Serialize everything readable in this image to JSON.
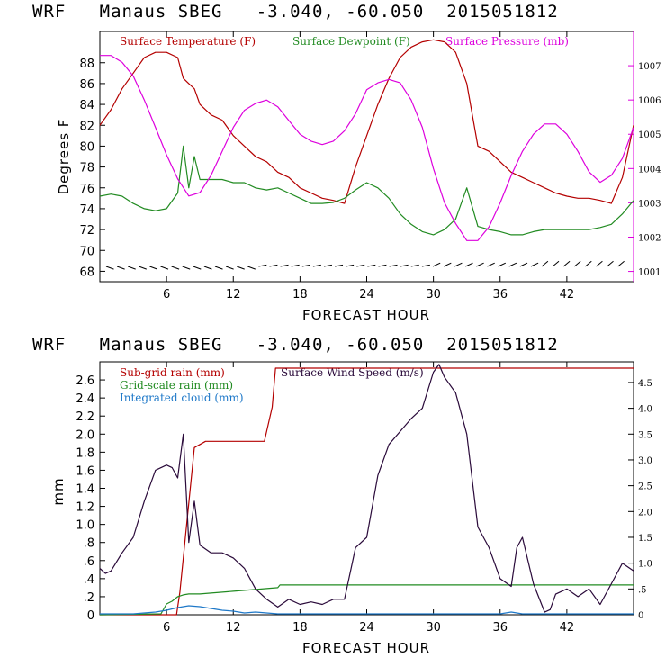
{
  "chart_data": [
    {
      "type": "line",
      "title": "WRF   Manaus SBEG   -3.040, -60.050  2015051812",
      "xlabel": "FORECAST HOUR",
      "ylabel": "Degrees F",
      "xlim": [
        0,
        48
      ],
      "ylim": [
        67,
        91
      ],
      "y2lim": [
        1000.7,
        1008.0
      ],
      "xticks": [
        6,
        12,
        18,
        24,
        30,
        36,
        42
      ],
      "yticks": [
        68,
        70,
        72,
        74,
        76,
        78,
        80,
        82,
        84,
        86,
        88
      ],
      "y2ticks": [
        1001,
        1002,
        1003,
        1004,
        1005,
        1006,
        1007
      ],
      "grid": false,
      "legend_position": "top-left",
      "colors": {
        "temperature": "#b40000",
        "dewpoint": "#228b22",
        "pressure": "#dd00dd",
        "wind_barbs": "#000000"
      },
      "series": [
        {
          "name": "Surface Temperature (F)",
          "axis": "left",
          "x": [
            0,
            1,
            2,
            3,
            4,
            5,
            6,
            7,
            7.5,
            8,
            8.5,
            9,
            10,
            11,
            12,
            13,
            14,
            15,
            16,
            17,
            18,
            19,
            20,
            21,
            22,
            23,
            24,
            25,
            26,
            27,
            28,
            29,
            30,
            31,
            32,
            33,
            34,
            35,
            36,
            37,
            38,
            39,
            40,
            41,
            42,
            43,
            44,
            45,
            46,
            47,
            48
          ],
          "values": [
            82,
            83.5,
            85.5,
            87,
            88.5,
            89,
            89,
            88.5,
            86.5,
            86,
            85.5,
            84,
            83,
            82.5,
            81,
            80,
            79,
            78.5,
            77.5,
            77,
            76,
            75.5,
            75,
            74.8,
            74.5,
            78,
            81,
            84,
            86.5,
            88.5,
            89.5,
            90,
            90.2,
            90,
            89,
            86,
            80,
            79.5,
            78.5,
            77.5,
            77,
            76.5,
            76,
            75.5,
            75.2,
            75,
            75,
            74.8,
            74.5,
            77,
            82
          ]
        },
        {
          "name": "Surface Dewpoint (F)",
          "axis": "left",
          "x": [
            0,
            1,
            2,
            3,
            4,
            5,
            6,
            7,
            7.5,
            8,
            8.5,
            9,
            10,
            11,
            12,
            13,
            14,
            15,
            16,
            17,
            18,
            19,
            20,
            21,
            22,
            23,
            24,
            25,
            26,
            27,
            28,
            29,
            30,
            31,
            32,
            33,
            34,
            35,
            36,
            37,
            38,
            39,
            40,
            41,
            42,
            43,
            44,
            45,
            46,
            47,
            48
          ],
          "values": [
            75.2,
            75.4,
            75.2,
            74.5,
            74,
            73.8,
            74,
            75.5,
            80,
            76,
            79,
            76.8,
            76.8,
            76.8,
            76.5,
            76.5,
            76,
            75.8,
            76,
            75.5,
            75,
            74.5,
            74.5,
            74.6,
            75,
            75.8,
            76.5,
            76,
            75,
            73.5,
            72.5,
            71.8,
            71.5,
            72,
            73,
            76,
            72.3,
            72,
            71.8,
            71.5,
            71.5,
            71.8,
            72,
            72,
            72,
            72,
            72,
            72.2,
            72.5,
            73.5,
            74.8
          ]
        },
        {
          "name": "Surface Pressure (mb)",
          "axis": "right",
          "x": [
            0,
            1,
            2,
            3,
            4,
            5,
            6,
            7,
            8,
            9,
            10,
            11,
            12,
            13,
            14,
            15,
            16,
            17,
            18,
            19,
            20,
            21,
            22,
            23,
            24,
            25,
            26,
            27,
            28,
            29,
            30,
            31,
            32,
            33,
            34,
            35,
            36,
            37,
            38,
            39,
            40,
            41,
            42,
            43,
            44,
            45,
            46,
            47,
            48
          ],
          "values": [
            1007.3,
            1007.3,
            1007.1,
            1006.7,
            1006.0,
            1005.2,
            1004.4,
            1003.7,
            1003.2,
            1003.3,
            1003.8,
            1004.5,
            1005.2,
            1005.7,
            1005.9,
            1006.0,
            1005.8,
            1005.4,
            1005.0,
            1004.8,
            1004.7,
            1004.8,
            1005.1,
            1005.6,
            1006.3,
            1006.5,
            1006.6,
            1006.5,
            1006.0,
            1005.2,
            1004.0,
            1003.0,
            1002.4,
            1001.9,
            1001.9,
            1002.3,
            1003.0,
            1003.8,
            1004.5,
            1005.0,
            1005.3,
            1005.3,
            1005.0,
            1004.5,
            1003.9,
            1003.6,
            1003.8,
            1004.3,
            1005.2
          ]
        }
      ]
    },
    {
      "type": "line",
      "title": "WRF   Manaus SBEG   -3.040, -60.050  2015051812",
      "xlabel": "FORECAST HOUR",
      "ylabel": "mm",
      "xlim": [
        0,
        48
      ],
      "ylim": [
        0,
        2.8
      ],
      "y2lim": [
        0,
        4.9
      ],
      "xticks": [
        6,
        12,
        18,
        24,
        30,
        36,
        42
      ],
      "yticks": [
        0,
        0.2,
        0.4,
        0.6,
        0.8,
        1.0,
        1.2,
        1.4,
        1.6,
        1.8,
        2.0,
        2.2,
        2.4,
        2.6
      ],
      "ytick_labels": [
        "0",
        ".2",
        ".4",
        ".6",
        ".8",
        "1.0",
        "1.2",
        "1.4",
        "1.6",
        "1.8",
        "2.0",
        "2.2",
        "2.4",
        "2.6"
      ],
      "y2ticks": [
        0,
        0.5,
        1.0,
        1.5,
        2.0,
        2.5,
        3.0,
        3.5,
        4.0,
        4.5
      ],
      "y2tick_labels": [
        "0",
        ".5",
        "1.0",
        "1.5",
        "2.0",
        "2.5",
        "3.0",
        "3.5",
        "4.0",
        "4.5"
      ],
      "grid": false,
      "legend_position": "top-left",
      "colors": {
        "subgrid": "#b40000",
        "gridscale": "#228b22",
        "cloud": "#1e78c8",
        "wind": "#2a0a3a"
      },
      "series": [
        {
          "name": "Sub-grid rain (mm)",
          "axis": "left",
          "x": [
            0,
            6.9,
            7.2,
            8.5,
            9.5,
            14.8,
            15.5,
            15.8,
            48
          ],
          "values": [
            0,
            0,
            0.25,
            1.85,
            1.92,
            1.92,
            2.3,
            2.73,
            2.73
          ]
        },
        {
          "name": "Grid-scale rain (mm)",
          "axis": "left",
          "x": [
            0,
            5.5,
            6,
            6.5,
            7,
            7.5,
            8,
            9,
            10,
            12,
            13,
            14,
            16,
            16.2,
            48
          ],
          "values": [
            0,
            0.01,
            0.12,
            0.15,
            0.2,
            0.22,
            0.23,
            0.23,
            0.24,
            0.26,
            0.27,
            0.28,
            0.3,
            0.33,
            0.33
          ]
        },
        {
          "name": "Integrated cloud (mm)",
          "axis": "left",
          "x": [
            0,
            3,
            4,
            5,
            6,
            7,
            8,
            9,
            10,
            11,
            12,
            13,
            14,
            15,
            16,
            17,
            18,
            36,
            37,
            38,
            48
          ],
          "values": [
            0.01,
            0.01,
            0.02,
            0.03,
            0.05,
            0.08,
            0.1,
            0.09,
            0.07,
            0.05,
            0.04,
            0.02,
            0.03,
            0.02,
            0.01,
            0.01,
            0.01,
            0.01,
            0.03,
            0.01,
            0.01
          ]
        },
        {
          "name": "Surface Wind Speed (m/s)",
          "axis": "right",
          "x": [
            0,
            0.5,
            1,
            2,
            3,
            4,
            5,
            6,
            6.5,
            7,
            7.5,
            8,
            8.5,
            9,
            10,
            11,
            12,
            13,
            14,
            15,
            16,
            17,
            18,
            19,
            20,
            21,
            22,
            23,
            24,
            25,
            26,
            27,
            28,
            29,
            30,
            30.5,
            31,
            32,
            33,
            34,
            35,
            36,
            37,
            37.5,
            38,
            39,
            40,
            40.5,
            41,
            42,
            43,
            44,
            45,
            46,
            47,
            48
          ],
          "values": [
            0.9,
            0.8,
            0.85,
            1.2,
            1.5,
            2.2,
            2.8,
            2.9,
            2.85,
            2.65,
            3.5,
            1.4,
            2.2,
            1.35,
            1.2,
            1.2,
            1.1,
            0.9,
            0.5,
            0.3,
            0.15,
            0.3,
            0.2,
            0.25,
            0.2,
            0.3,
            0.3,
            1.3,
            1.5,
            2.7,
            3.3,
            3.55,
            3.8,
            4.0,
            4.7,
            4.85,
            4.6,
            4.3,
            3.5,
            1.7,
            1.3,
            0.7,
            0.55,
            1.3,
            1.5,
            0.6,
            0.05,
            0.1,
            0.4,
            0.5,
            0.35,
            0.5,
            0.2,
            0.6,
            1.0,
            0.85
          ]
        }
      ]
    }
  ]
}
